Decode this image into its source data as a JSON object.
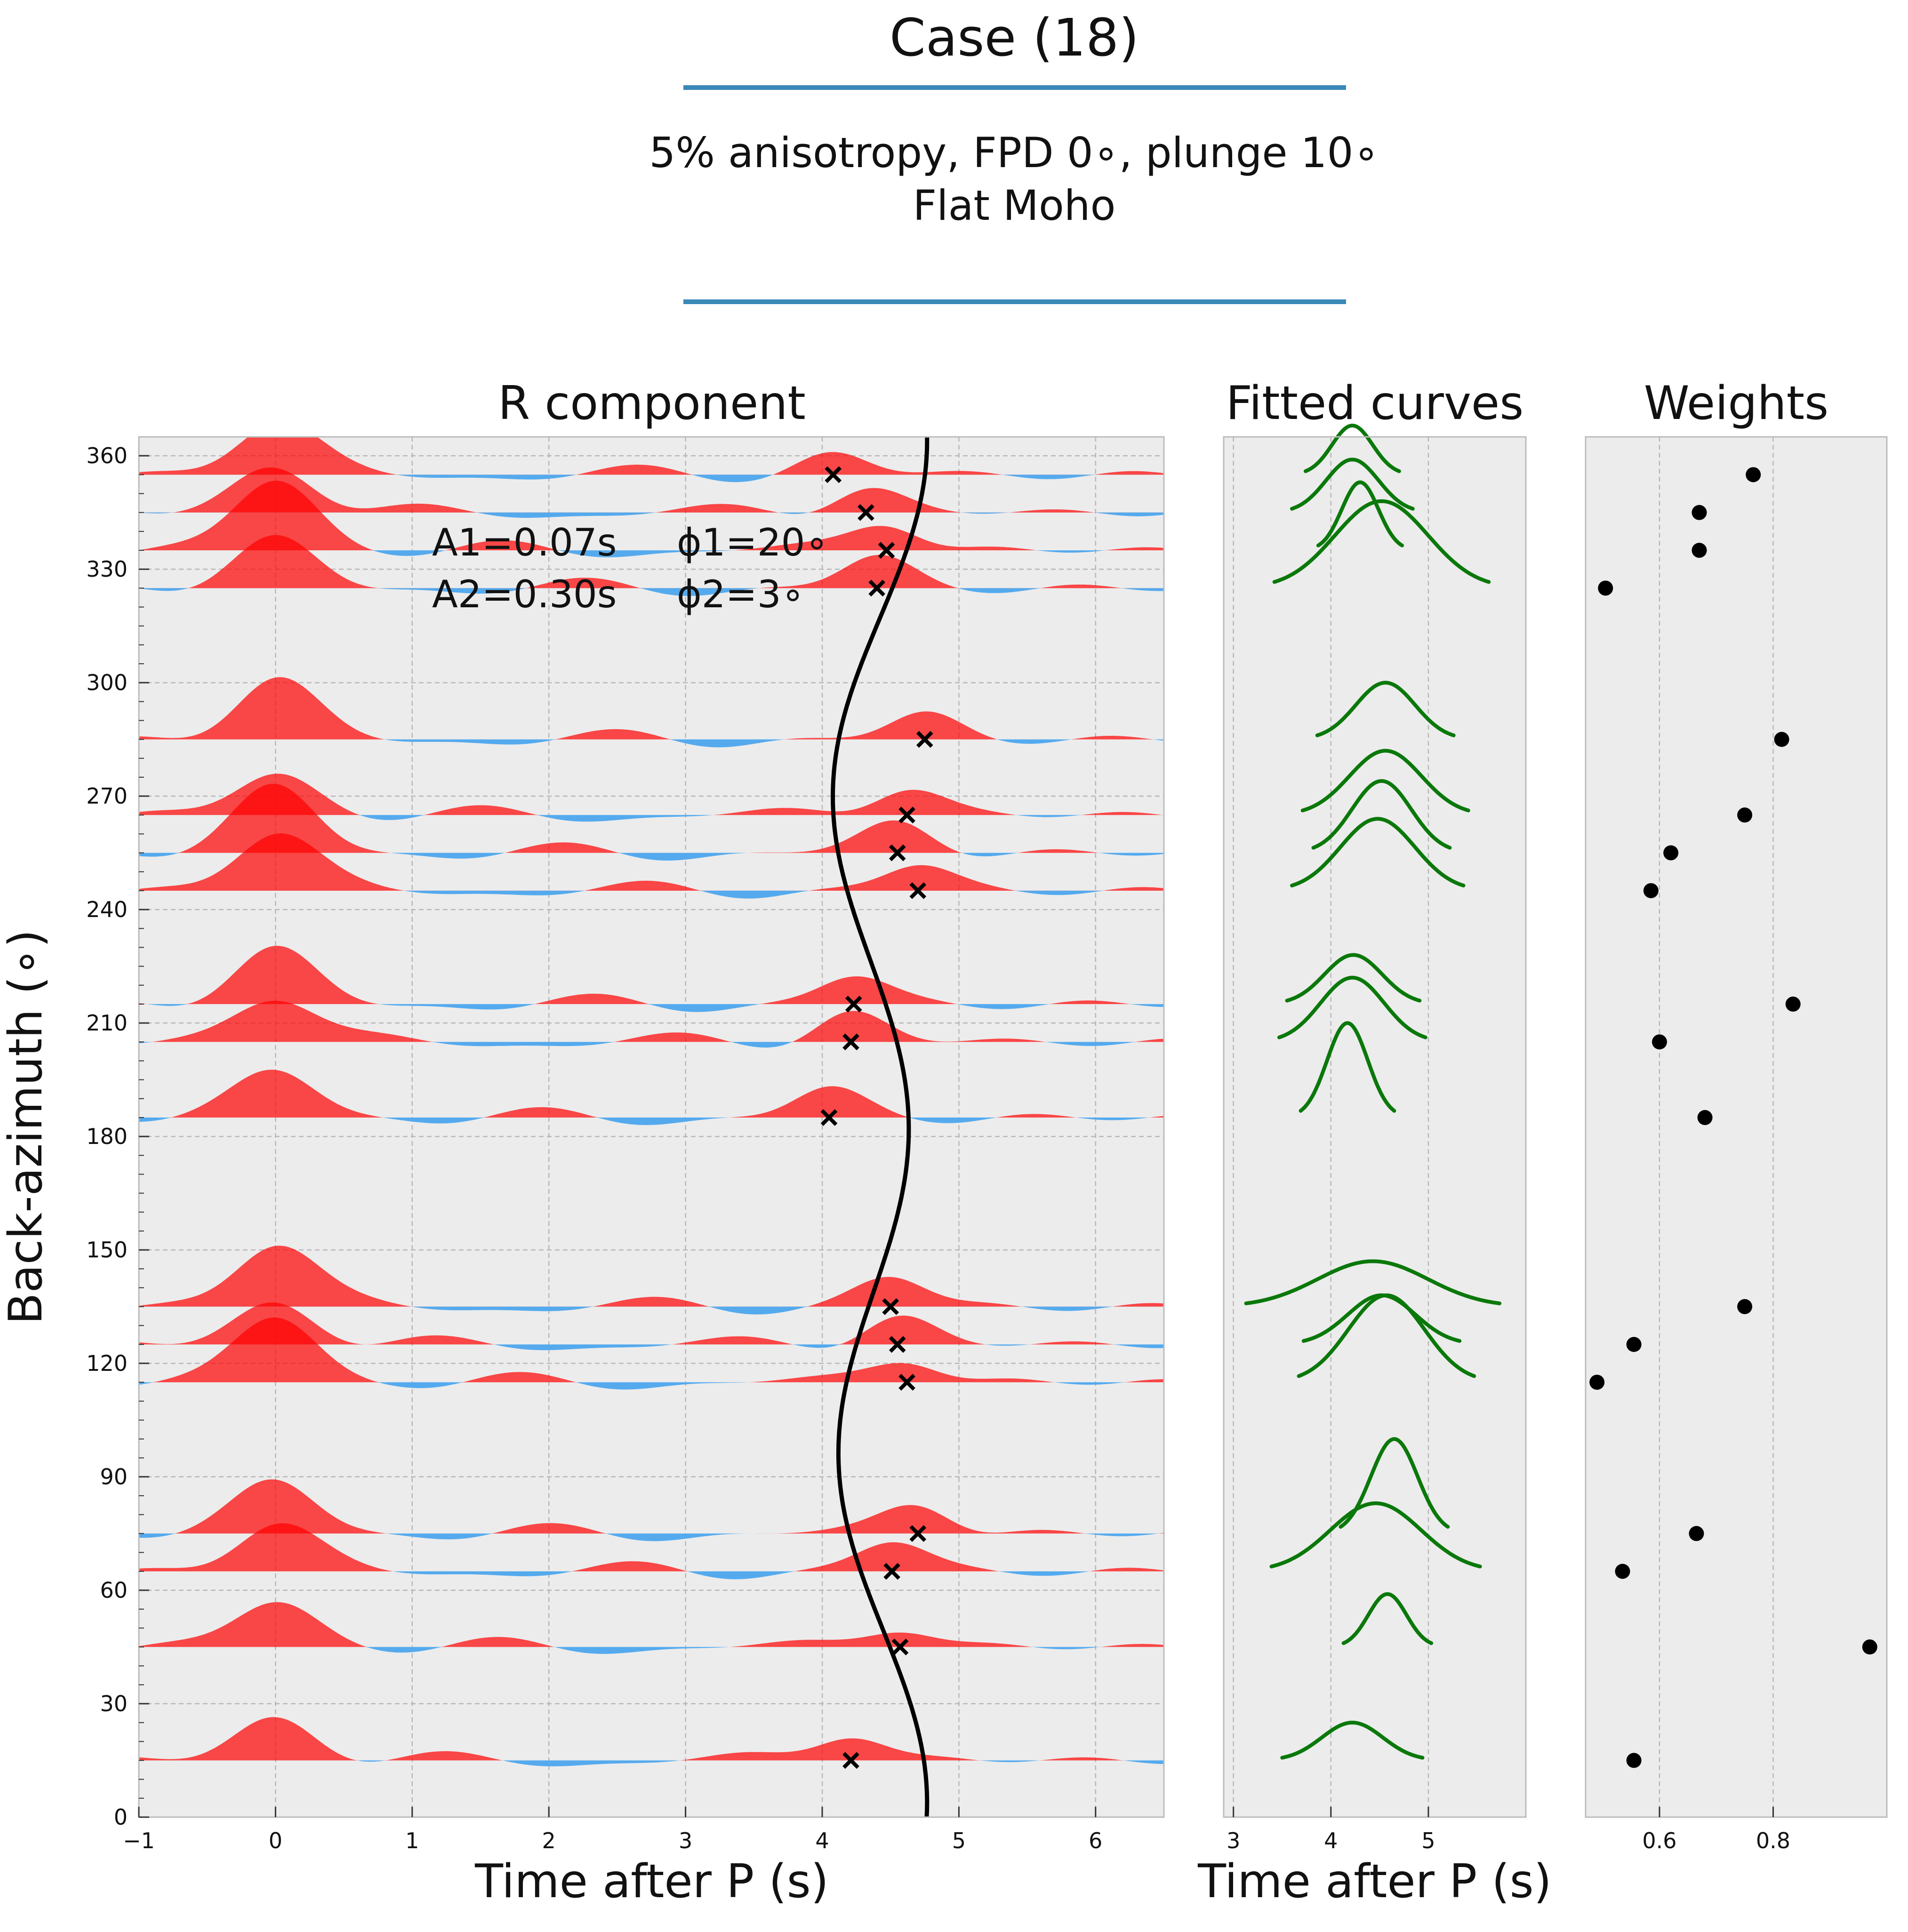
{
  "header": {
    "title": "Case (18)",
    "subtitle_line1": "5% anisotropy, FPD 0∘, plunge 10∘",
    "subtitle_line2": "Flat Moho",
    "rule_color": "#3a89b8"
  },
  "colors": {
    "positive_fill": "#ff0000",
    "negative_fill": "#55aaee",
    "fit_curve": "#000000",
    "fitted_curves": "#0a780a",
    "weights_marker": "#000000",
    "panel_bg": "#ececec",
    "grid": "#b8b8b8"
  },
  "chart_data": [
    {
      "type": "area",
      "title": "R component",
      "xlabel": "Time after P (s)",
      "ylabel": "Back-azimuth (∘)",
      "xlim": [
        -1,
        6.5
      ],
      "ylim": [
        0,
        365
      ],
      "xticks": [
        "−1",
        "0",
        "1",
        "2",
        "3",
        "4",
        "5",
        "6"
      ],
      "yticks": [
        "0",
        "30",
        "60",
        "90",
        "120",
        "150",
        "180",
        "210",
        "240",
        "270",
        "300",
        "330",
        "360"
      ],
      "grid": true,
      "annotation": {
        "line1_a": "A1=0.07s",
        "line1_phi": "ϕ1=20∘",
        "line2_a": "A2=0.30s",
        "line2_phi": "ϕ2=3∘"
      },
      "traces_baz": [
        15,
        45,
        65,
        75,
        115,
        125,
        135,
        185,
        205,
        215,
        245,
        255,
        265,
        285,
        325,
        335,
        345,
        355
      ],
      "picks": [
        {
          "baz": 15,
          "t": 4.21
        },
        {
          "baz": 45,
          "t": 4.57
        },
        {
          "baz": 65,
          "t": 4.51
        },
        {
          "baz": 75,
          "t": 4.7
        },
        {
          "baz": 115,
          "t": 4.62
        },
        {
          "baz": 125,
          "t": 4.55
        },
        {
          "baz": 135,
          "t": 4.5
        },
        {
          "baz": 185,
          "t": 4.05
        },
        {
          "baz": 205,
          "t": 4.21
        },
        {
          "baz": 215,
          "t": 4.23
        },
        {
          "baz": 245,
          "t": 4.7
        },
        {
          "baz": 255,
          "t": 4.55
        },
        {
          "baz": 265,
          "t": 4.62
        },
        {
          "baz": 285,
          "t": 4.75
        },
        {
          "baz": 325,
          "t": 4.4
        },
        {
          "baz": 335,
          "t": 4.47
        },
        {
          "baz": 345,
          "t": 4.32
        },
        {
          "baz": 355,
          "t": 4.08
        }
      ],
      "fit_curve": {
        "t0": 4.4,
        "a1": 0.07,
        "phi1_deg": 20,
        "a2": 0.3,
        "phi2_deg": 3
      }
    },
    {
      "type": "line",
      "title": "Fitted curves",
      "xlabel": "Time after P (s)",
      "xlim": [
        2.9,
        6.0
      ],
      "xticks": [
        "3",
        "4",
        "5"
      ],
      "curves": [
        {
          "baz": 15,
          "center": 4.22,
          "half_width": 0.72,
          "height": 10
        },
        {
          "baz": 45,
          "center": 4.58,
          "half_width": 0.45,
          "height": 14
        },
        {
          "baz": 65,
          "center": 4.46,
          "half_width": 1.07,
          "height": 18
        },
        {
          "baz": 75,
          "center": 4.65,
          "half_width": 0.55,
          "height": 25
        },
        {
          "baz": 115,
          "center": 4.57,
          "half_width": 0.9,
          "height": 23
        },
        {
          "baz": 125,
          "center": 4.52,
          "half_width": 0.8,
          "height": 13
        },
        {
          "baz": 135,
          "center": 4.43,
          "half_width": 1.3,
          "height": 12
        },
        {
          "baz": 185,
          "center": 4.17,
          "half_width": 0.48,
          "height": 25
        },
        {
          "baz": 205,
          "center": 4.22,
          "half_width": 0.75,
          "height": 17
        },
        {
          "baz": 215,
          "center": 4.23,
          "half_width": 0.68,
          "height": 13
        },
        {
          "baz": 245,
          "center": 4.48,
          "half_width": 0.88,
          "height": 19
        },
        {
          "baz": 255,
          "center": 4.52,
          "half_width": 0.7,
          "height": 19
        },
        {
          "baz": 265,
          "center": 4.56,
          "half_width": 0.85,
          "height": 17
        },
        {
          "baz": 285,
          "center": 4.56,
          "half_width": 0.7,
          "height": 15
        },
        {
          "baz": 325,
          "center": 4.52,
          "half_width": 1.1,
          "height": 23
        },
        {
          "baz": 335,
          "center": 4.3,
          "half_width": 0.43,
          "height": 18
        },
        {
          "baz": 345,
          "center": 4.22,
          "half_width": 0.62,
          "height": 14
        },
        {
          "baz": 355,
          "center": 4.22,
          "half_width": 0.48,
          "height": 13
        }
      ]
    },
    {
      "type": "scatter",
      "title": "Weights",
      "xlim": [
        0.47,
        1.0
      ],
      "xticks": [
        "0.6",
        "0.8"
      ],
      "points": [
        {
          "baz": 15,
          "w": 0.555
        },
        {
          "baz": 45,
          "w": 0.97
        },
        {
          "baz": 65,
          "w": 0.535
        },
        {
          "baz": 75,
          "w": 0.665
        },
        {
          "baz": 115,
          "w": 0.49
        },
        {
          "baz": 125,
          "w": 0.555
        },
        {
          "baz": 135,
          "w": 0.75
        },
        {
          "baz": 185,
          "w": 0.68
        },
        {
          "baz": 205,
          "w": 0.6
        },
        {
          "baz": 215,
          "w": 0.835
        },
        {
          "baz": 245,
          "w": 0.585
        },
        {
          "baz": 255,
          "w": 0.62
        },
        {
          "baz": 265,
          "w": 0.75
        },
        {
          "baz": 285,
          "w": 0.815
        },
        {
          "baz": 325,
          "w": 0.505
        },
        {
          "baz": 335,
          "w": 0.67
        },
        {
          "baz": 345,
          "w": 0.67
        },
        {
          "baz": 355,
          "w": 0.765
        }
      ]
    }
  ]
}
